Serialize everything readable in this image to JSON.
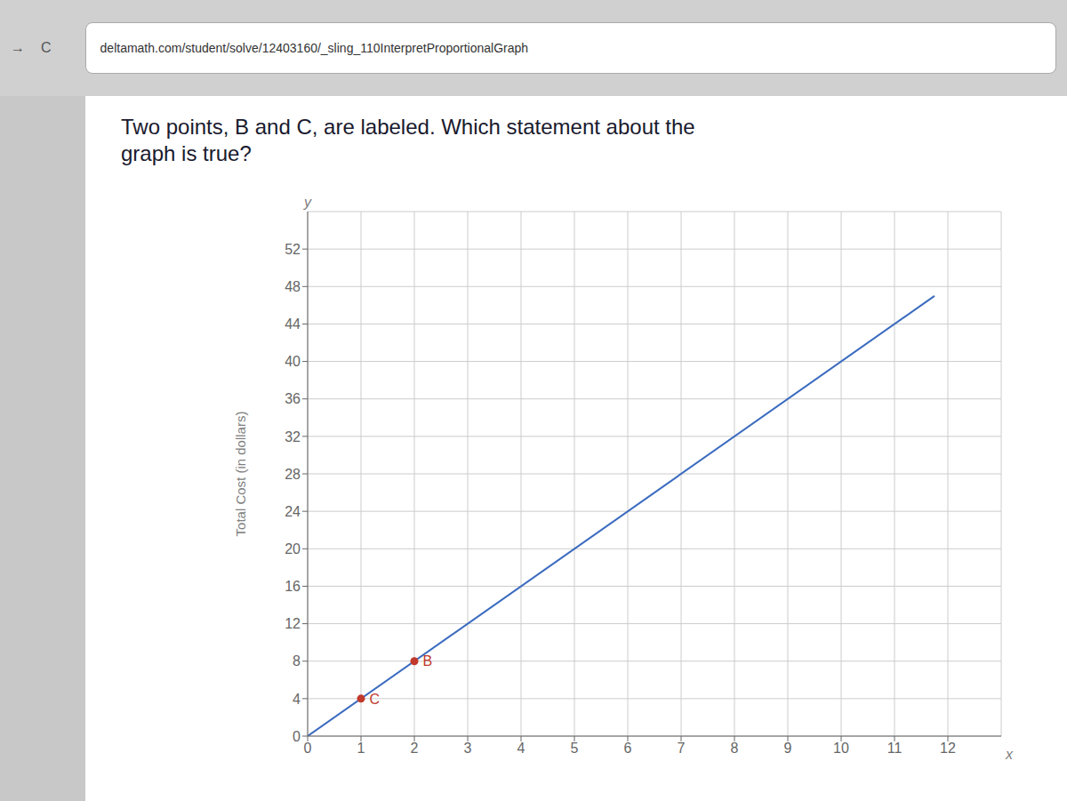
{
  "chart_data": {
    "type": "line",
    "title": "Two points, B and C, are labeled. Which statement about the\ngraph is true?",
    "url": "deltamath.com/student/solve/12403160/_sling_110InterpretProportionalGraph",
    "browser_buttons": [
      "→",
      "C"
    ],
    "ylabel": "Total Cost (in dollars)",
    "annotations": [
      {
        "text": "y",
        "axis": "y"
      },
      {
        "text": "x",
        "axis": "x"
      }
    ],
    "xlim": [
      0,
      13
    ],
    "ylim": [
      0,
      56
    ],
    "xticks": [
      0,
      1,
      2,
      3,
      4,
      5,
      6,
      7,
      8,
      9,
      10,
      11,
      12
    ],
    "yticks": [
      0,
      4,
      8,
      12,
      16,
      20,
      24,
      28,
      32,
      36,
      40,
      44,
      48,
      52
    ],
    "grid": true,
    "series": [
      {
        "type": "line",
        "color": "#3a6bbf",
        "x": [
          0,
          11.75
        ],
        "values": [
          0,
          47
        ]
      },
      {
        "type": "scatter",
        "color": "#c0392b",
        "x": [
          2,
          1
        ],
        "values": [
          8,
          4
        ],
        "point_labels": [
          "B",
          "C"
        ]
      }
    ]
  }
}
